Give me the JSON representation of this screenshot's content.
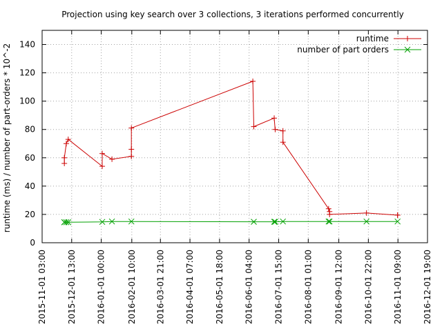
{
  "chart_data": {
    "type": "line",
    "title": "Projection using key search over 3 collections, 3 iterations performed concurrently",
    "ylabel": "runtime (ms) / number of part-orders * 10^-2",
    "xlabel": "",
    "x_axis_type": "time",
    "xlim": [
      "2015-11-01 03:00",
      "2016-12-01 19:00"
    ],
    "ylim": [
      0,
      150
    ],
    "x_ticks": [
      "2015-11-01 03:00",
      "2015-12-01 13:00",
      "2016-01-01 00:00",
      "2016-02-01 10:00",
      "2016-03-01 21:00",
      "2016-04-01 07:00",
      "2016-05-01 18:00",
      "2016-06-01 04:00",
      "2016-07-01 15:00",
      "2016-08-01 01:00",
      "2016-09-01 12:00",
      "2016-10-01 22:00",
      "2016-11-01 09:00",
      "2016-12-01 19:00"
    ],
    "y_ticks": [
      0,
      20,
      40,
      60,
      80,
      100,
      120,
      140
    ],
    "grid": true,
    "legend_position": "top-right",
    "series": [
      {
        "name": "runtime",
        "color": "#cc0000",
        "marker": "plus",
        "x": [
          "2015-11-24",
          "2015-11-24",
          "2015-11-26",
          "2015-11-28",
          "2016-01-02",
          "2016-01-02",
          "2016-01-12",
          "2016-02-01",
          "2016-02-01",
          "2016-02-01",
          "2016-06-05",
          "2016-06-06",
          "2016-06-27",
          "2016-06-28",
          "2016-07-06",
          "2016-07-06",
          "2016-08-22",
          "2016-08-23",
          "2016-08-23",
          "2016-09-30",
          "2016-11-01",
          "2016-11-01"
        ],
        "y": [
          56,
          60,
          70,
          73,
          54,
          63,
          59,
          61,
          66,
          81,
          114,
          82,
          88,
          80,
          79,
          71,
          24,
          22,
          20,
          21,
          19.5,
          19.5
        ]
      },
      {
        "name": "number of part orders",
        "color": "#00a000",
        "marker": "cross",
        "x": [
          "2015-11-24",
          "2015-11-24",
          "2015-11-26",
          "2015-11-28",
          "2016-01-02",
          "2016-01-12",
          "2016-02-01",
          "2016-06-06",
          "2016-06-27",
          "2016-06-28",
          "2016-07-06",
          "2016-08-22",
          "2016-08-23",
          "2016-09-30",
          "2016-11-01"
        ],
        "y": [
          14.5,
          14.5,
          14.5,
          14.5,
          14.7,
          15,
          15,
          14.8,
          14.8,
          14.8,
          15,
          15,
          15,
          15,
          15
        ]
      }
    ]
  }
}
